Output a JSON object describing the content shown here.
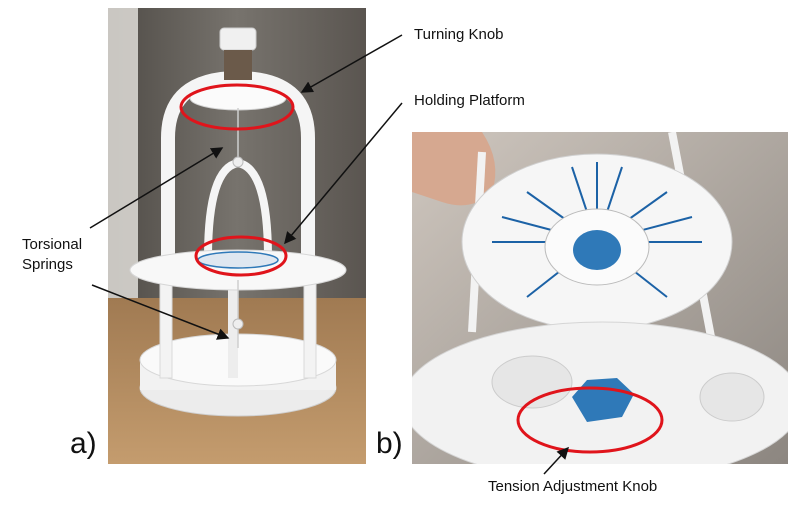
{
  "labels": {
    "turning_knob": "Turning Knob",
    "holding_platform": "Holding Platform",
    "torsional_springs_line1": "Torsional",
    "torsional_springs_line2": "Springs",
    "tension_knob": "Tension Adjustment Knob"
  },
  "panels": {
    "a": "a)",
    "b": "b)"
  },
  "colors": {
    "highlight": "#e0141b",
    "device": "#f4f4f4",
    "scale_marks": "#1c62a6",
    "knob_blue": "#2f79b8",
    "table": "#b0895f",
    "wall": "#6f6c67"
  },
  "icons": [
    "arrow-icon"
  ]
}
